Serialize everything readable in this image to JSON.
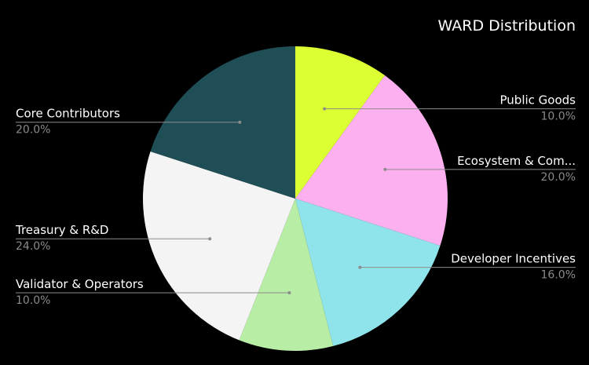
{
  "chart_data": {
    "type": "pie",
    "title": "WARD Distribution",
    "start_angle_deg": 0,
    "direction": "clockwise",
    "slices": [
      {
        "label": "Public Goods",
        "value": 10.0,
        "value_label": "10.0%",
        "color": "#dcff34",
        "label_side": "right"
      },
      {
        "label": "Ecosystem & Com...",
        "value": 20.0,
        "value_label": "20.0%",
        "color": "#fdb0ef",
        "label_side": "right"
      },
      {
        "label": "Developer Incentives",
        "value": 16.0,
        "value_label": "16.0%",
        "color": "#8ee4ea",
        "label_side": "right"
      },
      {
        "label": "Validator & Operators",
        "value": 10.0,
        "value_label": "10.0%",
        "color": "#b8eda6",
        "label_side": "left"
      },
      {
        "label": "Treasury & R&D",
        "value": 24.0,
        "value_label": "24.0%",
        "color": "#f4f4f4",
        "label_side": "left"
      },
      {
        "label": "Core Contributors",
        "value": 20.0,
        "value_label": "20.0%",
        "color": "#1f4e56",
        "label_side": "left"
      }
    ],
    "legend": "none"
  }
}
